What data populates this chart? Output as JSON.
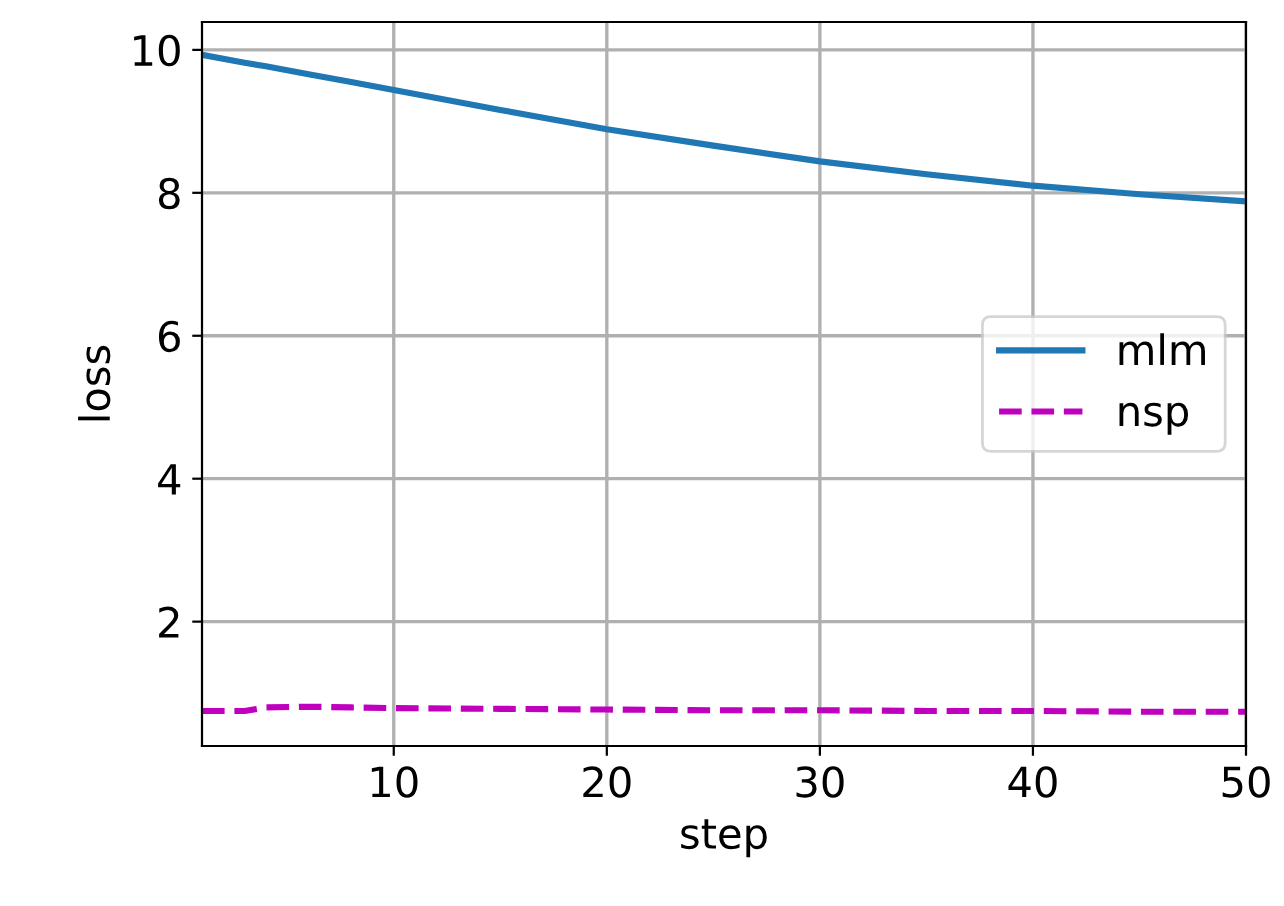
{
  "chart_data": {
    "type": "line",
    "xlabel": "step",
    "ylabel": "loss",
    "x": [
      1,
      3,
      4,
      6,
      8,
      10,
      15,
      20,
      25,
      30,
      35,
      40,
      45,
      50
    ],
    "series": [
      {
        "name": "mlm",
        "color": "#1f77b4",
        "line_style": "solid",
        "values": [
          9.93,
          9.82,
          9.77,
          9.66,
          9.55,
          9.44,
          9.16,
          8.89,
          8.66,
          8.44,
          8.26,
          8.1,
          7.98,
          7.88
        ]
      },
      {
        "name": "nsp",
        "color": "#bf00bf",
        "line_style": "dashed",
        "values": [
          0.75,
          0.75,
          0.8,
          0.81,
          0.8,
          0.79,
          0.78,
          0.77,
          0.76,
          0.76,
          0.75,
          0.75,
          0.74,
          0.74
        ]
      }
    ],
    "xlim": [
      1,
      50
    ],
    "xticks": [
      10,
      20,
      30,
      40,
      50
    ],
    "ylim": [
      0.26,
      10.39
    ],
    "yticks": [
      2,
      4,
      6,
      8,
      10
    ],
    "grid": true,
    "legend": "right"
  }
}
